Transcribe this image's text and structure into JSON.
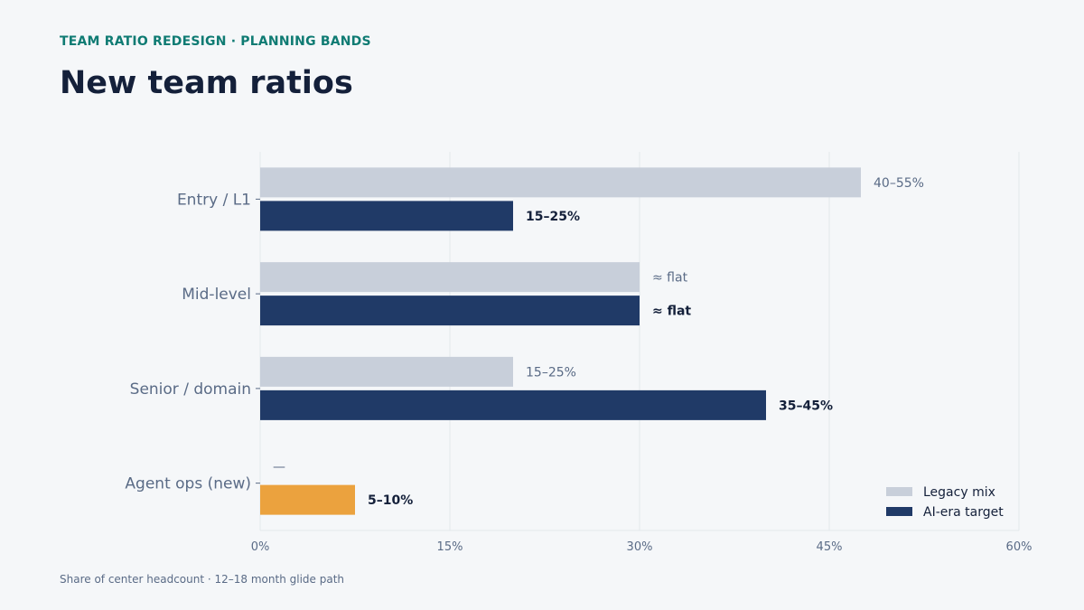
{
  "header": {
    "eyebrow": "TEAM RATIO REDESIGN · PLANNING BANDS",
    "title": "New team ratios"
  },
  "footnote": "Share of center headcount · 12–18 month glide path",
  "colors": {
    "legacy": "#c8cfda",
    "target": "#203a67",
    "new_role": "#eba23e",
    "legacy_label": "#5a6b86",
    "target_label": "#14203a",
    "axis_text": "#5a6b86",
    "grid": "#e4e8ec"
  },
  "chart_data": {
    "type": "bar",
    "orientation": "horizontal",
    "categories": [
      "Entry / L1",
      "Mid-level",
      "Senior / domain",
      "Agent ops (new)"
    ],
    "series": [
      {
        "name": "Legacy mix",
        "values": [
          47.5,
          30,
          20,
          null
        ],
        "labels": [
          "40–55%",
          "≈ flat",
          "15–25%",
          "—"
        ]
      },
      {
        "name": "AI-era target",
        "values": [
          20,
          30,
          40,
          7.5
        ],
        "labels": [
          "15–25%",
          "≈ flat",
          "35–45%",
          "5–10%"
        ]
      }
    ],
    "xlim": [
      0,
      60
    ],
    "xticks": [
      "0%",
      "15%",
      "30%",
      "45%",
      "60%"
    ],
    "grid": true,
    "legend_position": "bottom-right"
  }
}
